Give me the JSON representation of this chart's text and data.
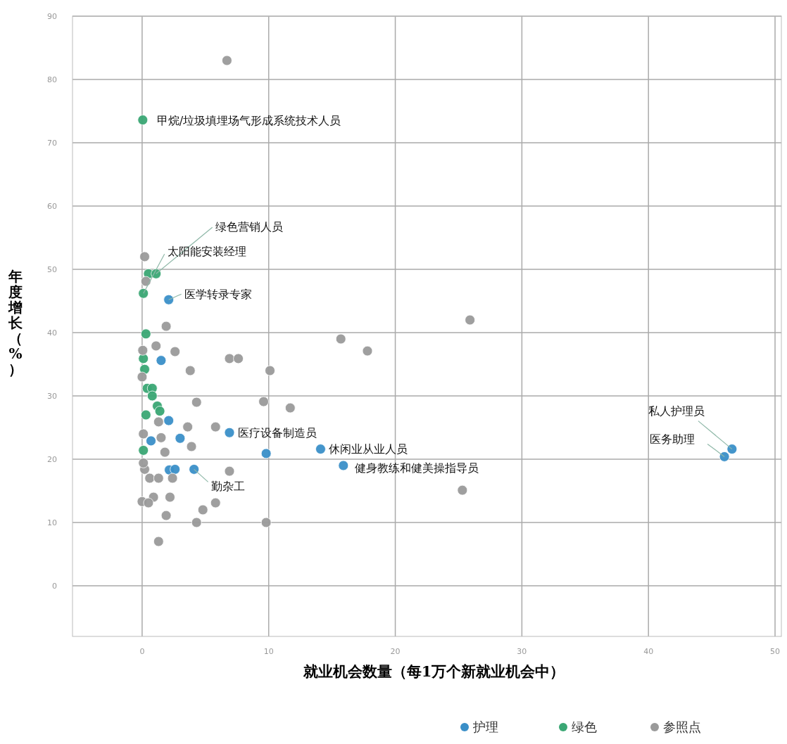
{
  "chart_data": {
    "type": "scatter",
    "xlabel": "就业机会数量（每1万个新就业机会中）",
    "ylabel": "年度增长（%）",
    "xlim": [
      -5.5,
      50.5
    ],
    "xticks": [
      0,
      10,
      20,
      30,
      40,
      50
    ],
    "ylim": [
      -8,
      90
    ],
    "yticks": [
      0,
      10,
      20,
      30,
      40,
      50,
      60,
      70,
      80,
      90
    ],
    "grid": true,
    "legend": "bottom right",
    "marker": "circle",
    "series": [
      {
        "name": "护理",
        "color": "#3a8fc8",
        "x": [
          2.1,
          1.5,
          2.1,
          0.7,
          3.0,
          2.15,
          2.6,
          4.1,
          6.9,
          9.8,
          14.1,
          15.9,
          46.6,
          46.0
        ],
        "values": [
          45.2,
          35.6,
          26.1,
          22.9,
          23.3,
          18.3,
          18.4,
          18.4,
          24.2,
          20.9,
          21.6,
          19.0,
          21.6,
          20.4
        ]
      },
      {
        "name": "绿色",
        "color": "#3aa774",
        "x": [
          0.05,
          0.5,
          1.1,
          0.1,
          0.3,
          0.1,
          0.2,
          0.4,
          0.8,
          0.8,
          1.2,
          1.4,
          0.3,
          0.1
        ],
        "values": [
          73.6,
          49.3,
          49.3,
          46.2,
          39.8,
          35.9,
          34.2,
          31.2,
          31.2,
          30.0,
          28.4,
          27.6,
          27.0,
          21.4
        ]
      },
      {
        "name": "参照点",
        "color": "#9a9a9a",
        "x": [
          6.7,
          0.2,
          0.3,
          1.9,
          1.1,
          2.6,
          3.8,
          6.9,
          7.6,
          10.1,
          15.7,
          17.8,
          25.9,
          0.05,
          0.0,
          9.6,
          11.7,
          4.3,
          5.8,
          3.6,
          1.5,
          1.3,
          1.8,
          3.9,
          6.9,
          2.4,
          0.6,
          1.3,
          0.2,
          0.0,
          0.9,
          2.2,
          1.9,
          4.8,
          5.8,
          4.3,
          9.8,
          1.3,
          25.3,
          0.1,
          0.5,
          0.1
        ],
        "values": [
          83.0,
          52.0,
          48.1,
          41.0,
          37.9,
          37.0,
          34.0,
          35.9,
          35.9,
          34.0,
          39.0,
          37.1,
          42.0,
          37.2,
          33.0,
          29.1,
          28.1,
          29.0,
          25.1,
          25.1,
          23.4,
          25.9,
          21.1,
          22.0,
          18.1,
          17.0,
          17.0,
          17.0,
          18.4,
          13.3,
          14.0,
          14.0,
          11.1,
          12.0,
          13.1,
          10.0,
          10.0,
          7.0,
          15.1,
          19.4,
          13.1,
          24.0
        ]
      }
    ],
    "annotations": [
      {
        "text": "甲烷/垃圾填埋场气形成系统技术人员",
        "x": 0.05,
        "y": 73.6
      },
      {
        "text": "绿色营销人员",
        "x": 1.1,
        "y": 49.3
      },
      {
        "text": "太阳能安装经理",
        "x": 0.1,
        "y": 46.2
      },
      {
        "text": "医学转录专家",
        "x": 2.1,
        "y": 45.2
      },
      {
        "text": "医疗设备制造员",
        "x": 6.9,
        "y": 24.2
      },
      {
        "text": "休闲业从业人员",
        "x": 14.1,
        "y": 21.6
      },
      {
        "text": "健身教练和健美操指导员",
        "x": 15.9,
        "y": 19.0
      },
      {
        "text": "勤杂工",
        "x": 4.1,
        "y": 18.4
      },
      {
        "text": "私人护理员",
        "x": 46.6,
        "y": 21.6
      },
      {
        "text": "医务助理",
        "x": 46.0,
        "y": 20.4
      }
    ]
  }
}
